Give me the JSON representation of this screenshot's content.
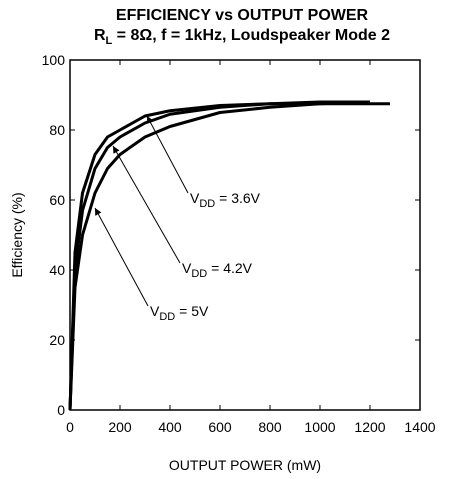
{
  "chart_data": {
    "type": "line",
    "title": "EFFICIENCY vs OUTPUT POWER",
    "subtitle": {
      "main": "R",
      "sub": "L",
      "rest": " = 8Ω, f = 1kHz, Loudspeaker Mode 2"
    },
    "x_label": "OUTPUT POWER (mW)",
    "y_label": "Efficiency (%)",
    "xlim": [
      0,
      1400
    ],
    "xticks": [
      0,
      200,
      400,
      600,
      800,
      1000,
      1200,
      1400
    ],
    "ylim": [
      0,
      100
    ],
    "yticks": [
      0,
      20,
      40,
      60,
      80,
      100
    ],
    "grid": false,
    "series": [
      {
        "label": {
          "main": "V",
          "sub": "DD",
          "rest": " = 3.6V"
        },
        "color": "#000000",
        "x": [
          0,
          20,
          50,
          100,
          150,
          200,
          300,
          400,
          600,
          800,
          1000,
          1200
        ],
        "values": [
          0,
          45,
          62,
          73,
          78,
          80,
          84,
          85.5,
          87,
          87.5,
          88,
          88
        ]
      },
      {
        "label": {
          "main": "V",
          "sub": "DD",
          "rest": " = 4.2V"
        },
        "color": "#000000",
        "x": [
          0,
          20,
          50,
          100,
          150,
          200,
          300,
          400,
          600,
          800,
          1000,
          1280
        ],
        "values": [
          0,
          40,
          57,
          69,
          75,
          78,
          82,
          84.5,
          86.5,
          87.5,
          87.5,
          87.5
        ]
      },
      {
        "label": {
          "main": "V",
          "sub": "DD",
          "rest": " = 5V"
        },
        "color": "#000000",
        "x": [
          0,
          20,
          50,
          100,
          150,
          200,
          300,
          400,
          600,
          800,
          1000,
          1180
        ],
        "values": [
          0,
          35,
          50,
          62,
          69,
          73,
          78,
          81,
          85,
          86.5,
          87.5,
          88
        ]
      }
    ]
  }
}
